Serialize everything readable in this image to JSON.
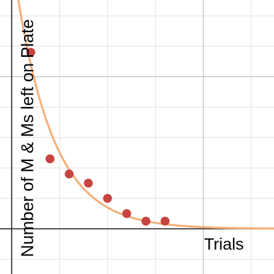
{
  "chart_data": {
    "type": "scatter",
    "x_label": "Trials",
    "y_label": "Number of M & Ms left on Plate",
    "x": [
      1,
      2,
      3,
      4,
      5,
      6,
      7,
      8
    ],
    "values": [
      58,
      23,
      18,
      15,
      10,
      5,
      2.5,
      2.5
    ],
    "color": "#c74440",
    "curve": {
      "a": 90,
      "b": 0.6,
      "color": "#f4b07a"
    },
    "xlim": [
      -0.607,
      13.68
    ],
    "ylim": [
      -14.86,
      75.2
    ],
    "xticks": [
      2.5,
      5,
      7.5,
      10,
      12.5
    ],
    "yticks": [
      -10,
      10,
      20,
      30,
      40,
      50,
      60,
      70
    ],
    "major_xticks": [
      10
    ],
    "major_yticks": [
      50
    ],
    "grid": true
  }
}
